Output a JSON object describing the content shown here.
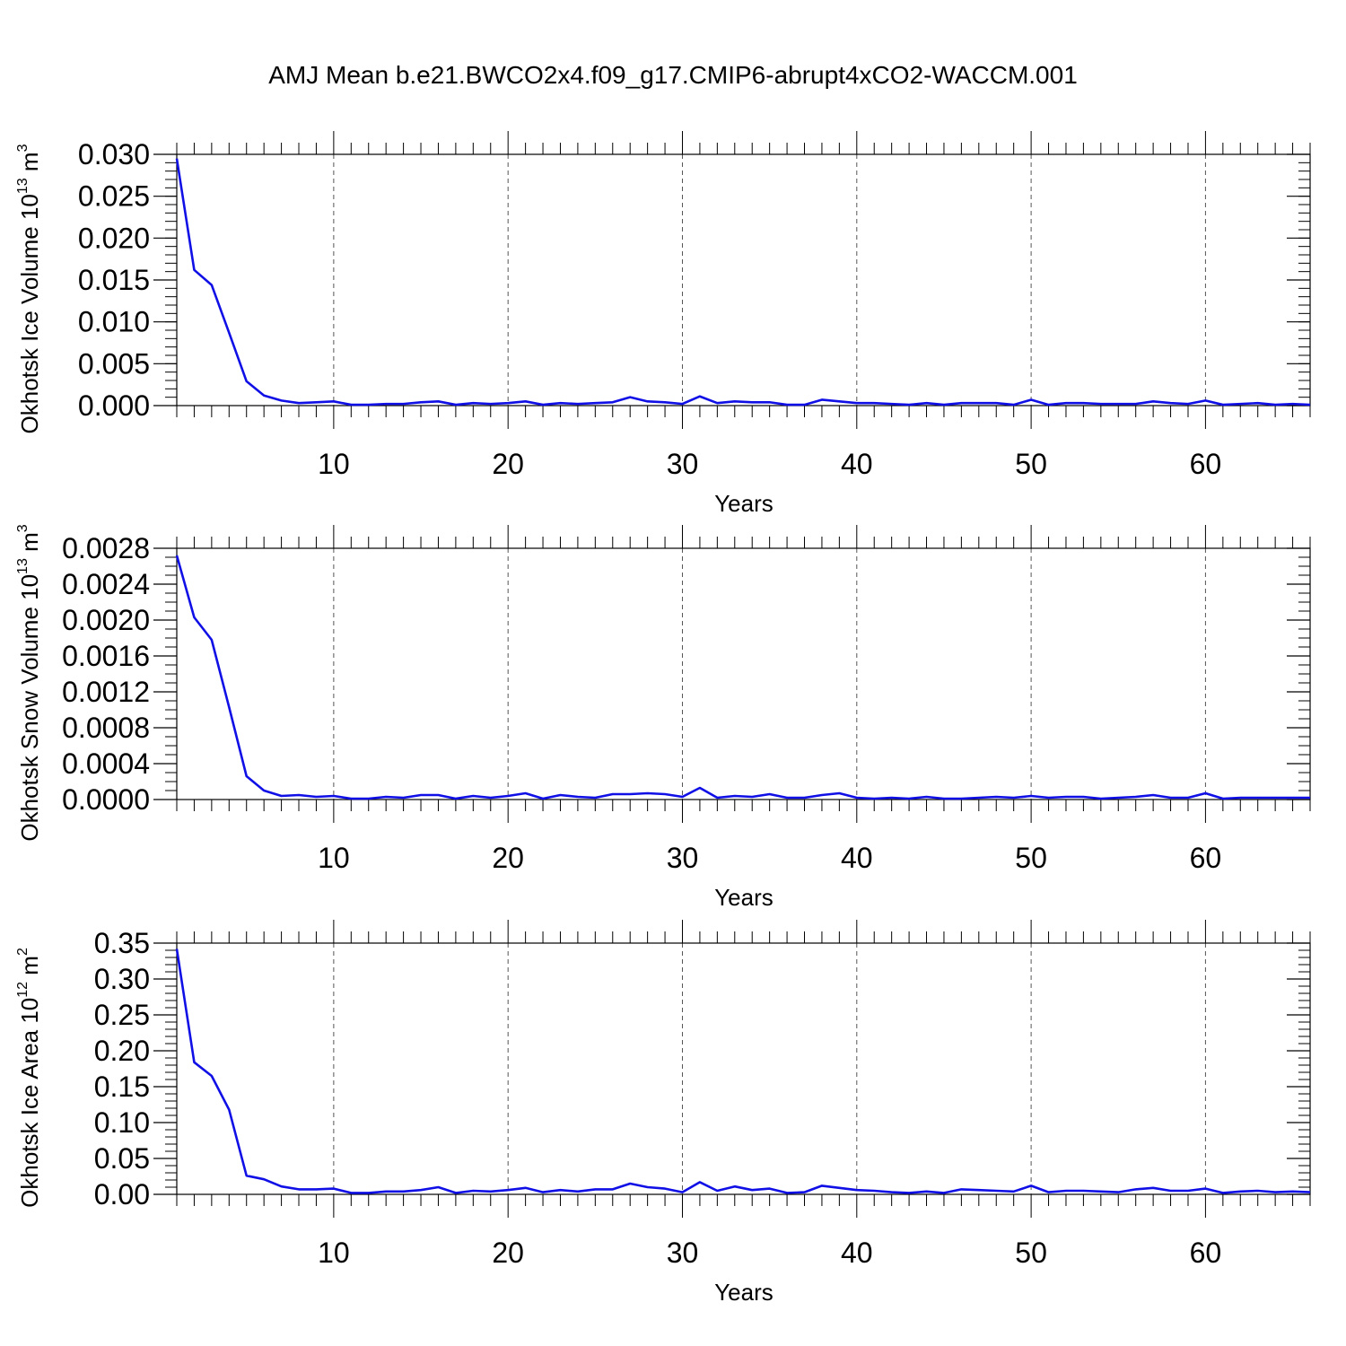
{
  "figure": {
    "title": "AMJ Mean b.e21.BWCO2x4.f09_g17.CMIP6-abrupt4xCO2-WACCM.001"
  },
  "chart_data": [
    {
      "type": "line",
      "title": "",
      "xlabel": "Years",
      "ylabel": {
        "text": "Okhotsk Ice Volume 10",
        "sup": "13",
        "unit": " m",
        "unit_sup": "3"
      },
      "xlim": [
        1,
        66
      ],
      "ylim": [
        0,
        0.03
      ],
      "yticks": [
        0.0,
        0.005,
        0.01,
        0.015,
        0.02,
        0.025,
        0.03
      ],
      "ytick_labels": [
        "0.000",
        "0.005",
        "0.010",
        "0.015",
        "0.020",
        "0.025",
        "0.030"
      ],
      "yminor_step": 0.001,
      "xticks": [
        10,
        20,
        30,
        40,
        50,
        60
      ],
      "xtick_labels": [
        "10",
        "20",
        "30",
        "40",
        "50",
        "60"
      ],
      "grid": "vertical dashed at major x ticks",
      "line_color": "#1010e6",
      "x": [
        1,
        2,
        3,
        4,
        5,
        6,
        7,
        8,
        9,
        10,
        11,
        12,
        13,
        14,
        15,
        16,
        17,
        18,
        19,
        20,
        21,
        22,
        23,
        24,
        25,
        26,
        27,
        28,
        29,
        30,
        31,
        32,
        33,
        34,
        35,
        36,
        37,
        38,
        39,
        40,
        41,
        42,
        43,
        44,
        45,
        46,
        47,
        48,
        49,
        50,
        51,
        52,
        53,
        54,
        55,
        56,
        57,
        58,
        59,
        60,
        61,
        62,
        63,
        64,
        65,
        66
      ],
      "series": [
        {
          "values": [
            0.0295,
            0.0162,
            0.0144,
            0.0087,
            0.0029,
            0.0012,
            0.0006,
            0.0003,
            0.0004,
            0.0005,
            0.0001,
            0.0001,
            0.0002,
            0.0002,
            0.0004,
            0.0005,
            0.0001,
            0.0003,
            0.0002,
            0.0003,
            0.0005,
            0.0001,
            0.0003,
            0.0002,
            0.0003,
            0.0004,
            0.001,
            0.0005,
            0.0004,
            0.0002,
            0.0011,
            0.0003,
            0.0005,
            0.0004,
            0.0004,
            0.0001,
            0.0001,
            0.0007,
            0.0005,
            0.0003,
            0.0003,
            0.0002,
            0.0001,
            0.0003,
            0.0001,
            0.0003,
            0.0003,
            0.0003,
            0.0001,
            0.0007,
            0.0001,
            0.0003,
            0.0003,
            0.0002,
            0.0002,
            0.0002,
            0.0005,
            0.0003,
            0.0002,
            0.0006,
            0.0001,
            0.0002,
            0.0003,
            0.0001,
            0.0002,
            0.0001
          ]
        }
      ]
    },
    {
      "type": "line",
      "title": "",
      "xlabel": "Years",
      "ylabel": {
        "text": "Okhotsk Snow Volume 10",
        "sup": "13",
        "unit": " m",
        "unit_sup": "3"
      },
      "xlim": [
        1,
        66
      ],
      "ylim": [
        0,
        0.0028
      ],
      "yticks": [
        0.0,
        0.0004,
        0.0008,
        0.0012,
        0.0016,
        0.002,
        0.0024,
        0.0028
      ],
      "ytick_labels": [
        "0.0000",
        "0.0004",
        "0.0008",
        "0.0012",
        "0.0016",
        "0.0020",
        "0.0024",
        "0.0028"
      ],
      "yminor_step": 0.0001,
      "xticks": [
        10,
        20,
        30,
        40,
        50,
        60
      ],
      "xtick_labels": [
        "10",
        "20",
        "30",
        "40",
        "50",
        "60"
      ],
      "grid": "vertical dashed at major x ticks",
      "line_color": "#1010e6",
      "x": [
        1,
        2,
        3,
        4,
        5,
        6,
        7,
        8,
        9,
        10,
        11,
        12,
        13,
        14,
        15,
        16,
        17,
        18,
        19,
        20,
        21,
        22,
        23,
        24,
        25,
        26,
        27,
        28,
        29,
        30,
        31,
        32,
        33,
        34,
        35,
        36,
        37,
        38,
        39,
        40,
        41,
        42,
        43,
        44,
        45,
        46,
        47,
        48,
        49,
        50,
        51,
        52,
        53,
        54,
        55,
        56,
        57,
        58,
        59,
        60,
        61,
        62,
        63,
        64,
        65,
        66
      ],
      "series": [
        {
          "values": [
            0.00272,
            0.00203,
            0.00178,
            0.00103,
            0.00026,
            0.0001,
            4e-05,
            5e-05,
            3e-05,
            4e-05,
            1e-05,
            1e-05,
            3e-05,
            2e-05,
            5e-05,
            5e-05,
            1e-05,
            4e-05,
            2e-05,
            4e-05,
            7e-05,
            1e-05,
            5e-05,
            3e-05,
            2e-05,
            6e-05,
            6e-05,
            7e-05,
            6e-05,
            3e-05,
            0.00013,
            2e-05,
            4e-05,
            3e-05,
            6e-05,
            2e-05,
            2e-05,
            5e-05,
            7e-05,
            2e-05,
            1e-05,
            2e-05,
            1e-05,
            3e-05,
            1e-05,
            1e-05,
            2e-05,
            3e-05,
            2e-05,
            4e-05,
            2e-05,
            3e-05,
            3e-05,
            1e-05,
            2e-05,
            3e-05,
            5e-05,
            2e-05,
            2e-05,
            7e-05,
            1e-05,
            2e-05,
            2e-05,
            2e-05,
            2e-05,
            2e-05
          ]
        }
      ]
    },
    {
      "type": "line",
      "title": "",
      "xlabel": "Years",
      "ylabel": {
        "text": "Okhotsk Ice Area 10",
        "sup": "12",
        "unit": " m",
        "unit_sup": "2"
      },
      "xlim": [
        1,
        66
      ],
      "ylim": [
        0,
        0.35
      ],
      "yticks": [
        0.0,
        0.05,
        0.1,
        0.15,
        0.2,
        0.25,
        0.3,
        0.35
      ],
      "ytick_labels": [
        "0.00",
        "0.05",
        "0.10",
        "0.15",
        "0.20",
        "0.25",
        "0.30",
        "0.35"
      ],
      "yminor_step": 0.01,
      "xticks": [
        10,
        20,
        30,
        40,
        50,
        60
      ],
      "xtick_labels": [
        "10",
        "20",
        "30",
        "40",
        "50",
        "60"
      ],
      "grid": "vertical dashed at major x ticks",
      "line_color": "#1010e6",
      "x": [
        1,
        2,
        3,
        4,
        5,
        6,
        7,
        8,
        9,
        10,
        11,
        12,
        13,
        14,
        15,
        16,
        17,
        18,
        19,
        20,
        21,
        22,
        23,
        24,
        25,
        26,
        27,
        28,
        29,
        30,
        31,
        32,
        33,
        34,
        35,
        36,
        37,
        38,
        39,
        40,
        41,
        42,
        43,
        44,
        45,
        46,
        47,
        48,
        49,
        50,
        51,
        52,
        53,
        54,
        55,
        56,
        57,
        58,
        59,
        60,
        61,
        62,
        63,
        64,
        65,
        66
      ],
      "series": [
        {
          "values": [
            0.342,
            0.184,
            0.165,
            0.118,
            0.026,
            0.021,
            0.011,
            0.007,
            0.007,
            0.008,
            0.002,
            0.002,
            0.004,
            0.004,
            0.006,
            0.01,
            0.002,
            0.005,
            0.004,
            0.006,
            0.009,
            0.003,
            0.006,
            0.004,
            0.007,
            0.007,
            0.015,
            0.01,
            0.008,
            0.003,
            0.017,
            0.005,
            0.011,
            0.006,
            0.008,
            0.002,
            0.003,
            0.012,
            0.009,
            0.006,
            0.005,
            0.003,
            0.002,
            0.004,
            0.002,
            0.007,
            0.006,
            0.005,
            0.004,
            0.012,
            0.003,
            0.005,
            0.005,
            0.004,
            0.003,
            0.007,
            0.009,
            0.005,
            0.005,
            0.008,
            0.002,
            0.004,
            0.005,
            0.003,
            0.004,
            0.003
          ]
        }
      ]
    }
  ]
}
